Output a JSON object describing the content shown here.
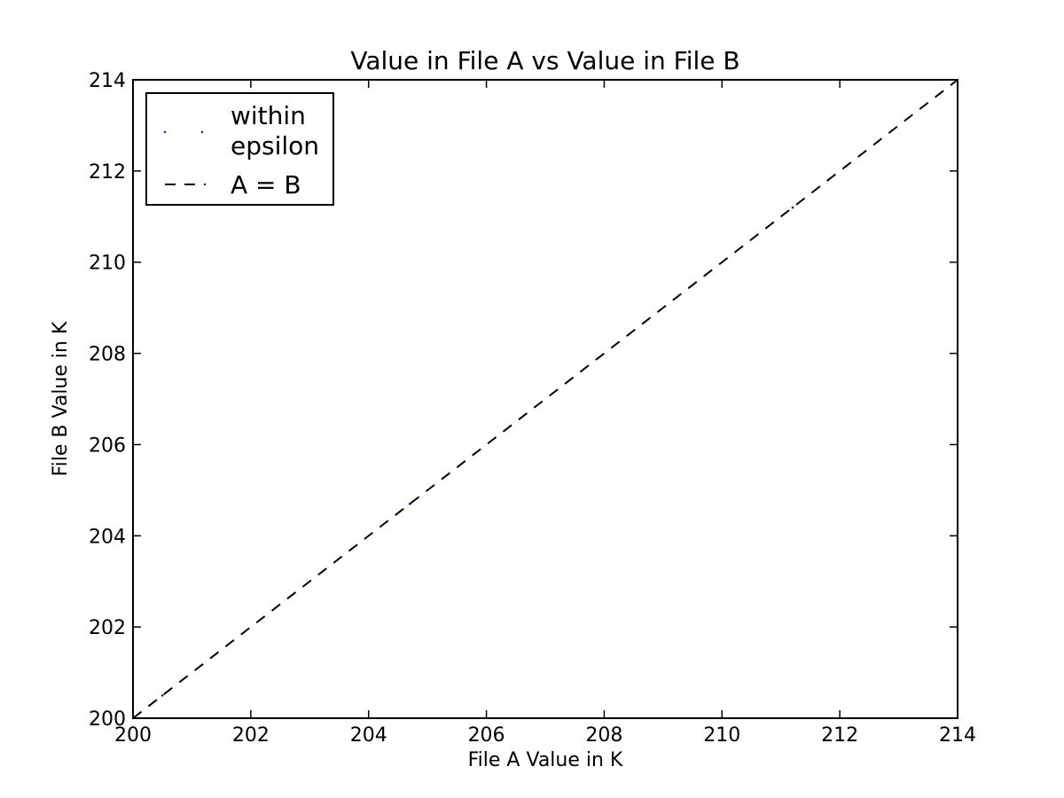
{
  "chart_data": {
    "type": "scatter",
    "title": "Value in File A vs Value in File B",
    "xlabel": "File A Value in K",
    "ylabel": "File B Value in K",
    "xlim": [
      200,
      214
    ],
    "ylim": [
      200,
      214
    ],
    "xticks": [
      200,
      202,
      204,
      206,
      208,
      210,
      212,
      214
    ],
    "yticks": [
      200,
      202,
      204,
      206,
      208,
      210,
      212,
      214
    ],
    "x_tick_labels": [
      "200",
      "202",
      "204",
      "206",
      "208",
      "210",
      "212",
      "214"
    ],
    "y_tick_labels": [
      "200",
      "202",
      "204",
      "206",
      "208",
      "210",
      "212",
      "214"
    ],
    "grid": false,
    "legend_position": "top-left",
    "series": [
      {
        "name": "within epsilon",
        "name_lines": [
          "within",
          "epsilon"
        ],
        "kind": "points",
        "color": "#0000ff",
        "x": [
          200.5,
          204.7,
          211.2,
          211.8,
          212.1
        ],
        "y": [
          200.5,
          204.7,
          211.2,
          211.8,
          212.1
        ]
      },
      {
        "name": "A = B",
        "kind": "dashed-line",
        "color": "#000000",
        "x": [
          200,
          214
        ],
        "y": [
          200,
          214
        ]
      }
    ]
  }
}
